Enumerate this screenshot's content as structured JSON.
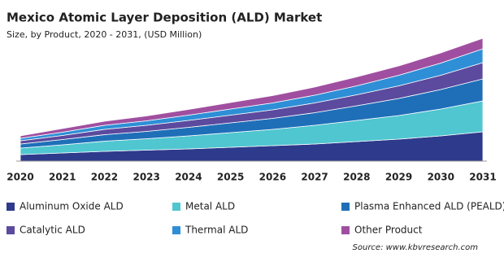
{
  "chart_data": {
    "type": "stacked-area",
    "title": "Mexico Atomic Layer Deposition (ALD) Market",
    "subtitle": "Size, by Product, 2020 - 2031, (USD Million)",
    "source": "Source: www.kbvresearch.com",
    "categories": [
      "2020",
      "2021",
      "2022",
      "2023",
      "2024",
      "2025",
      "2026",
      "2027",
      "2028",
      "2029",
      "2030",
      "2031"
    ],
    "ylim": [
      0,
      160
    ],
    "series": [
      {
        "name": "Aluminum Oxide ALD",
        "color": "#2e3a8c",
        "values": [
          8,
          10,
          12,
          13.5,
          15,
          17,
          19,
          21,
          24,
          27,
          31,
          36
        ]
      },
      {
        "name": "Metal ALD",
        "color": "#4fc6d0",
        "values": [
          8,
          10,
          12.5,
          14,
          16,
          18,
          20,
          23,
          26,
          29,
          33,
          38
        ]
      },
      {
        "name": "Plasma Enhanced ALD (PEALD)",
        "color": "#1f6fb8",
        "values": [
          5,
          6.5,
          8,
          9,
          10.5,
          12,
          13.5,
          15.5,
          18,
          21,
          24,
          27
        ]
      },
      {
        "name": "Catalytic ALD",
        "color": "#5b4a9e",
        "values": [
          4,
          5,
          6.5,
          7.5,
          8.5,
          9.5,
          10.5,
          12,
          13.5,
          15.5,
          17.5,
          20
        ]
      },
      {
        "name": "Thermal ALD",
        "color": "#2e8fd6",
        "values": [
          3,
          4,
          5,
          5.5,
          6.5,
          7.5,
          8.5,
          9.5,
          11,
          13,
          15,
          17
        ]
      },
      {
        "name": "Other Product",
        "color": "#a04fa0",
        "values": [
          3,
          4.5,
          5,
          6,
          7,
          8,
          9,
          10,
          11,
          11.5,
          12.5,
          13
        ]
      }
    ]
  }
}
